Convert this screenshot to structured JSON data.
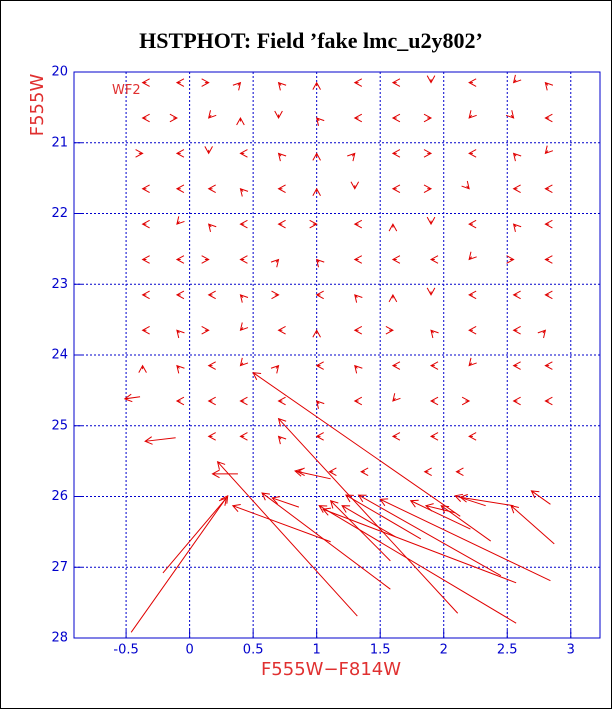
{
  "chart_data": {
    "type": "vector",
    "title": "HSTPHOT: Field ’fake lmc_u2y802’",
    "x_label": "F555W−F814W",
    "y_label": "F555W",
    "annotation": "WF2",
    "xlim": [
      -0.91,
      3.23
    ],
    "ylim": [
      20,
      28
    ],
    "y_inverted": true,
    "xticks": [
      -0.5,
      0,
      0.5,
      1,
      1.5,
      2,
      2.5,
      3
    ],
    "yticks": [
      20,
      21,
      22,
      23,
      24,
      25,
      26,
      27,
      28
    ],
    "grid": true,
    "grid_color": "#0000cc",
    "axis_color": "#0000cc",
    "color": "#e00000",
    "arrows": [
      [
        -0.34,
        20.15,
        -0.37,
        20.15
      ],
      [
        -0.07,
        20.15,
        -0.1,
        20.15
      ],
      [
        0.12,
        20.15,
        0.15,
        20.15
      ],
      [
        0.38,
        20.19,
        0.4,
        20.15
      ],
      [
        0.72,
        20.19,
        0.7,
        20.15
      ],
      [
        1.0,
        20.2,
        1.0,
        20.15
      ],
      [
        1.33,
        20.15,
        1.3,
        20.15
      ],
      [
        1.63,
        20.15,
        1.6,
        20.15
      ],
      [
        1.9,
        20.1,
        1.9,
        20.15
      ],
      [
        2.23,
        20.15,
        2.2,
        20.15
      ],
      [
        2.57,
        20.11,
        2.55,
        20.15
      ],
      [
        2.82,
        20.19,
        2.8,
        20.15
      ],
      [
        -0.34,
        20.65,
        -0.37,
        20.65
      ],
      [
        -0.13,
        20.65,
        -0.1,
        20.65
      ],
      [
        0.17,
        20.61,
        0.15,
        20.65
      ],
      [
        0.4,
        20.7,
        0.4,
        20.65
      ],
      [
        0.7,
        20.6,
        0.7,
        20.65
      ],
      [
        1.02,
        20.69,
        1.0,
        20.65
      ],
      [
        1.33,
        20.65,
        1.3,
        20.65
      ],
      [
        1.63,
        20.65,
        1.6,
        20.65
      ],
      [
        1.87,
        20.65,
        1.9,
        20.65
      ],
      [
        2.22,
        20.61,
        2.2,
        20.65
      ],
      [
        2.53,
        20.61,
        2.55,
        20.65
      ],
      [
        2.83,
        20.65,
        2.8,
        20.65
      ],
      [
        -0.4,
        21.15,
        -0.37,
        21.15
      ],
      [
        -0.07,
        21.15,
        -0.1,
        21.15
      ],
      [
        0.15,
        21.1,
        0.15,
        21.15
      ],
      [
        0.43,
        21.15,
        0.4,
        21.15
      ],
      [
        0.72,
        21.19,
        0.7,
        21.15
      ],
      [
        1.0,
        21.2,
        1.0,
        21.15
      ],
      [
        1.28,
        21.19,
        1.3,
        21.15
      ],
      [
        1.63,
        21.15,
        1.6,
        21.15
      ],
      [
        1.87,
        21.15,
        1.9,
        21.15
      ],
      [
        2.23,
        21.15,
        2.2,
        21.15
      ],
      [
        2.57,
        21.19,
        2.55,
        21.15
      ],
      [
        2.82,
        21.11,
        2.8,
        21.15
      ],
      [
        -0.34,
        21.65,
        -0.37,
        21.65
      ],
      [
        -0.07,
        21.65,
        -0.1,
        21.65
      ],
      [
        0.18,
        21.65,
        0.15,
        21.65
      ],
      [
        0.42,
        21.69,
        0.4,
        21.65
      ],
      [
        0.73,
        21.65,
        0.7,
        21.65
      ],
      [
        1.0,
        21.7,
        1.0,
        21.65
      ],
      [
        1.3,
        21.6,
        1.3,
        21.65
      ],
      [
        1.63,
        21.65,
        1.6,
        21.65
      ],
      [
        1.87,
        21.65,
        1.9,
        21.65
      ],
      [
        2.18,
        21.61,
        2.2,
        21.65
      ],
      [
        2.58,
        21.65,
        2.55,
        21.65
      ],
      [
        2.83,
        21.65,
        2.8,
        21.65
      ],
      [
        -0.34,
        22.15,
        -0.37,
        22.15
      ],
      [
        -0.08,
        22.11,
        -0.1,
        22.15
      ],
      [
        0.17,
        22.19,
        0.15,
        22.15
      ],
      [
        0.43,
        22.15,
        0.4,
        22.15
      ],
      [
        0.73,
        22.15,
        0.7,
        22.15
      ],
      [
        0.97,
        22.15,
        1.0,
        22.15
      ],
      [
        1.33,
        22.15,
        1.3,
        22.15
      ],
      [
        1.6,
        22.2,
        1.6,
        22.15
      ],
      [
        1.9,
        22.1,
        1.9,
        22.15
      ],
      [
        2.23,
        22.15,
        2.2,
        22.15
      ],
      [
        2.57,
        22.19,
        2.55,
        22.15
      ],
      [
        2.83,
        22.15,
        2.8,
        22.15
      ],
      [
        -0.34,
        22.65,
        -0.37,
        22.65
      ],
      [
        -0.07,
        22.65,
        -0.1,
        22.65
      ],
      [
        0.12,
        22.65,
        0.15,
        22.65
      ],
      [
        0.43,
        22.65,
        0.4,
        22.65
      ],
      [
        0.68,
        22.69,
        0.7,
        22.65
      ],
      [
        1.02,
        22.69,
        1.0,
        22.65
      ],
      [
        1.33,
        22.65,
        1.3,
        22.65
      ],
      [
        1.63,
        22.65,
        1.6,
        22.65
      ],
      [
        1.93,
        22.65,
        1.9,
        22.65
      ],
      [
        2.22,
        22.61,
        2.2,
        22.65
      ],
      [
        2.52,
        22.65,
        2.55,
        22.65
      ],
      [
        2.83,
        22.65,
        2.8,
        22.65
      ],
      [
        -0.34,
        23.15,
        -0.37,
        23.15
      ],
      [
        -0.07,
        23.15,
        -0.1,
        23.15
      ],
      [
        0.18,
        23.15,
        0.15,
        23.15
      ],
      [
        0.42,
        23.19,
        0.4,
        23.15
      ],
      [
        0.67,
        23.15,
        0.7,
        23.15
      ],
      [
        1.03,
        23.15,
        1.0,
        23.15
      ],
      [
        1.32,
        23.19,
        1.3,
        23.15
      ],
      [
        1.6,
        23.2,
        1.6,
        23.15
      ],
      [
        1.9,
        23.1,
        1.9,
        23.15
      ],
      [
        2.23,
        23.15,
        2.2,
        23.15
      ],
      [
        2.58,
        23.15,
        2.55,
        23.15
      ],
      [
        2.83,
        23.15,
        2.8,
        23.15
      ],
      [
        -0.34,
        23.65,
        -0.37,
        23.65
      ],
      [
        -0.08,
        23.69,
        -0.1,
        23.65
      ],
      [
        0.12,
        23.65,
        0.15,
        23.65
      ],
      [
        0.42,
        23.61,
        0.4,
        23.65
      ],
      [
        0.73,
        23.65,
        0.7,
        23.65
      ],
      [
        1.0,
        23.7,
        1.0,
        23.65
      ],
      [
        1.33,
        23.65,
        1.3,
        23.65
      ],
      [
        1.57,
        23.65,
        1.6,
        23.65
      ],
      [
        1.92,
        23.69,
        1.9,
        23.65
      ],
      [
        2.23,
        23.65,
        2.2,
        23.65
      ],
      [
        2.58,
        23.65,
        2.55,
        23.65
      ],
      [
        2.78,
        23.69,
        2.8,
        23.65
      ],
      [
        -0.37,
        24.2,
        -0.37,
        24.15
      ],
      [
        -0.08,
        24.19,
        -0.1,
        24.15
      ],
      [
        0.18,
        24.15,
        0.15,
        24.15
      ],
      [
        0.42,
        24.11,
        0.4,
        24.15
      ],
      [
        0.68,
        24.19,
        0.7,
        24.15
      ],
      [
        1.03,
        24.15,
        1.0,
        24.15
      ],
      [
        1.32,
        24.19,
        1.3,
        24.15
      ],
      [
        1.63,
        24.15,
        1.6,
        24.15
      ],
      [
        1.93,
        24.15,
        1.9,
        24.15
      ],
      [
        2.22,
        24.11,
        2.2,
        24.15
      ],
      [
        2.58,
        24.15,
        2.55,
        24.15
      ],
      [
        2.83,
        24.15,
        2.8,
        24.15
      ],
      [
        -0.07,
        24.65,
        -0.1,
        24.65
      ],
      [
        0.18,
        24.65,
        0.15,
        24.65
      ],
      [
        0.43,
        24.65,
        0.4,
        24.65
      ],
      [
        0.73,
        24.65,
        0.7,
        24.65
      ],
      [
        1.02,
        24.69,
        1.0,
        24.65
      ],
      [
        1.33,
        24.65,
        1.3,
        24.65
      ],
      [
        1.62,
        24.61,
        1.6,
        24.65
      ],
      [
        1.93,
        24.65,
        1.9,
        24.65
      ],
      [
        2.17,
        24.65,
        2.2,
        24.65
      ],
      [
        2.58,
        24.65,
        2.55,
        24.65
      ],
      [
        2.83,
        24.65,
        2.8,
        24.65
      ],
      [
        0.18,
        25.15,
        0.15,
        25.15
      ],
      [
        0.43,
        25.15,
        0.4,
        25.15
      ],
      [
        0.72,
        25.19,
        0.7,
        25.15
      ],
      [
        1.03,
        25.15,
        1.0,
        25.15
      ],
      [
        1.63,
        25.15,
        1.6,
        25.15
      ],
      [
        1.93,
        25.15,
        1.9,
        25.15
      ],
      [
        2.23,
        25.15,
        2.2,
        25.15
      ],
      [
        0.88,
        25.65,
        0.85,
        25.65
      ],
      [
        1.13,
        25.65,
        1.1,
        25.65
      ],
      [
        1.38,
        25.65,
        1.35,
        25.65
      ],
      [
        1.88,
        25.65,
        1.85,
        25.65
      ],
      [
        2.13,
        25.65,
        2.1,
        25.65
      ],
      [
        -0.46,
        27.92,
        0.3,
        25.99
      ],
      [
        -0.21,
        27.08,
        0.29,
        26.02
      ],
      [
        1.11,
        26.64,
        0.34,
        26.13
      ],
      [
        1.32,
        27.69,
        0.22,
        25.51
      ],
      [
        1.58,
        27.31,
        0.57,
        25.95
      ],
      [
        2.13,
        26.28,
        0.5,
        24.25
      ],
      [
        2.11,
        27.65,
        0.7,
        24.9
      ],
      [
        0.86,
        26.15,
        0.65,
        26.02
      ],
      [
        2.57,
        27.79,
        1.02,
        26.13
      ],
      [
        2.57,
        27.22,
        1.05,
        26.18
      ],
      [
        2.84,
        27.19,
        1.5,
        26.04
      ],
      [
        2.87,
        26.67,
        2.53,
        26.13
      ],
      [
        2.84,
        26.11,
        2.69,
        25.92
      ],
      [
        2.45,
        27.12,
        1.33,
        25.98
      ],
      [
        1.82,
        26.6,
        1.23,
        25.98
      ],
      [
        1.58,
        26.91,
        1.11,
        26.06
      ],
      [
        1.62,
        26.57,
        1.2,
        26.13
      ],
      [
        2.21,
        26.46,
        1.74,
        26.06
      ],
      [
        2.37,
        26.63,
        1.98,
        26.13
      ],
      [
        2.55,
        26.13,
        2.13,
        26.01
      ],
      [
        2.33,
        26.13,
        2.09,
        25.99
      ],
      [
        0.38,
        25.68,
        0.18,
        25.68
      ],
      [
        -0.11,
        25.17,
        -0.35,
        25.22
      ],
      [
        -0.39,
        24.59,
        -0.51,
        24.62
      ],
      [
        1.11,
        25.75,
        0.83,
        25.64
      ],
      [
        2.09,
        26.23,
        1.86,
        26.13
      ]
    ]
  }
}
